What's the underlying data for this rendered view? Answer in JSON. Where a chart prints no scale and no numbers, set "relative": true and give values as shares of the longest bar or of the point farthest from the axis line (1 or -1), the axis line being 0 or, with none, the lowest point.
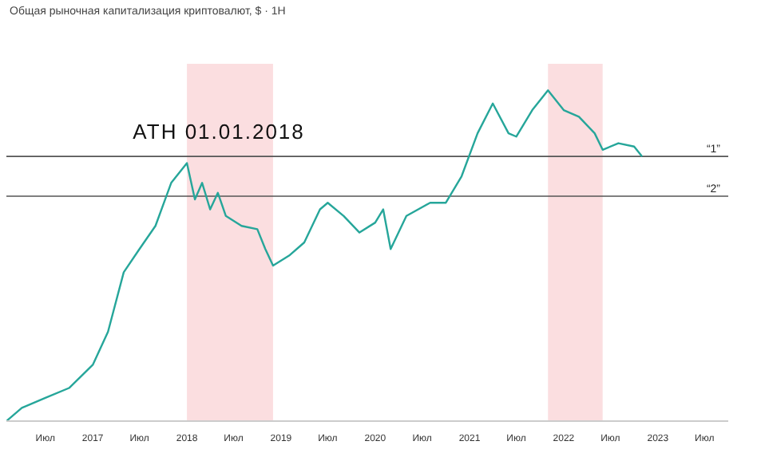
{
  "chart_data": {
    "type": "line",
    "title": "Общая рыночная капитализация криптовалют, $ · 1Н",
    "relative": true,
    "x": [
      "2016-02",
      "2016-04",
      "2016-07",
      "2016-10",
      "2017-01",
      "2017-03",
      "2017-05",
      "2017-07",
      "2017-09",
      "2017-11",
      "2018-01",
      "2018-02",
      "2018-03",
      "2018-04",
      "2018-05",
      "2018-06",
      "2018-08",
      "2018-10",
      "2018-11",
      "2018-12",
      "2019-02",
      "2019-04",
      "2019-06",
      "2019-07",
      "2019-09",
      "2019-11",
      "2020-01",
      "2020-02",
      "2020-03",
      "2020-05",
      "2020-08",
      "2020-10",
      "2020-12",
      "2021-02",
      "2021-04",
      "2021-06",
      "2021-07",
      "2021-09",
      "2021-11",
      "2022-01",
      "2022-03",
      "2022-05",
      "2022-06",
      "2022-08",
      "2022-10",
      "2022-11"
    ],
    "series": [
      {
        "color": "#26a69a",
        "values": [
          0,
          0.04,
          0.07,
          0.1,
          0.17,
          0.27,
          0.45,
          0.52,
          0.59,
          0.72,
          0.78,
          0.67,
          0.72,
          0.64,
          0.69,
          0.62,
          0.59,
          0.58,
          0.52,
          0.47,
          0.5,
          0.54,
          0.64,
          0.66,
          0.62,
          0.57,
          0.6,
          0.64,
          0.52,
          0.62,
          0.66,
          0.66,
          0.74,
          0.87,
          0.96,
          0.87,
          0.86,
          0.94,
          1,
          0.94,
          0.92,
          0.87,
          0.82,
          0.84,
          0.83,
          0.8
        ]
      }
    ],
    "xlim": [
      "2016-02",
      "2023-10"
    ],
    "xticks": [
      {
        "value": "2016-07",
        "label": "Июл"
      },
      {
        "value": "2017",
        "label": "2017"
      },
      {
        "value": "2017-07",
        "label": "Июл"
      },
      {
        "value": "2018",
        "label": "2018"
      },
      {
        "value": "2018-07",
        "label": "Июл"
      },
      {
        "value": "2019",
        "label": "2019"
      },
      {
        "value": "2019-07",
        "label": "Июл"
      },
      {
        "value": "2020",
        "label": "2020"
      },
      {
        "value": "2020-07",
        "label": "Июл"
      },
      {
        "value": "2021",
        "label": "2021"
      },
      {
        "value": "2021-07",
        "label": "Июл"
      },
      {
        "value": "2022",
        "label": "2022"
      },
      {
        "value": "2022-07",
        "label": "Июл"
      },
      {
        "value": "2023",
        "label": "2023"
      },
      {
        "value": "2023-07",
        "label": "Июл"
      }
    ],
    "ref_lines": [
      {
        "axis": "y",
        "value": 0.8,
        "label": "“1”",
        "color": "#555555"
      },
      {
        "axis": "y",
        "value": 0.68,
        "label": "“2”",
        "color": "#555555"
      }
    ],
    "bands": [
      {
        "axis": "x",
        "from": "2018-01",
        "to": "2018-12",
        "color": "#f8c8cc"
      },
      {
        "axis": "x",
        "from": "2021-11",
        "to": "2022-06",
        "color": "#f8c8cc"
      }
    ],
    "annotations": [
      {
        "text": "ATH 01.01.2018",
        "x": "2018-01",
        "y": 0.78
      }
    ],
    "marker": "none",
    "line_style": "solid"
  }
}
